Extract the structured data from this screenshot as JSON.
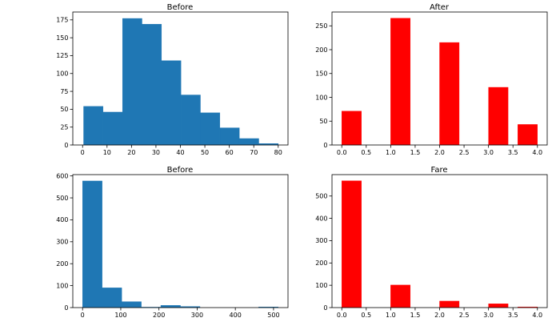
{
  "colors": {
    "blue": "#1f77b4",
    "red": "#ff0000",
    "axis": "#000000",
    "edge": "#1f77b4"
  },
  "chart_data": [
    {
      "type": "bar",
      "title": "Before",
      "xlabel": "",
      "ylabel": "",
      "xlim": [
        -4.0,
        84.0
      ],
      "ylim": [
        0,
        186
      ],
      "xticks": [
        0,
        10,
        20,
        30,
        40,
        50,
        60,
        70,
        80
      ],
      "yticks": [
        0,
        25,
        50,
        75,
        100,
        125,
        150,
        175
      ],
      "color": "#1f77b4",
      "bins": [
        {
          "x0": 0.42,
          "x1": 8.38,
          "value": 54
        },
        {
          "x0": 8.38,
          "x1": 16.34,
          "value": 46
        },
        {
          "x0": 16.34,
          "x1": 24.3,
          "value": 177
        },
        {
          "x0": 24.3,
          "x1": 32.26,
          "value": 169
        },
        {
          "x0": 32.26,
          "x1": 40.22,
          "value": 118
        },
        {
          "x0": 40.22,
          "x1": 48.18,
          "value": 70
        },
        {
          "x0": 48.18,
          "x1": 56.14,
          "value": 45
        },
        {
          "x0": 56.14,
          "x1": 64.1,
          "value": 24
        },
        {
          "x0": 64.1,
          "x1": 72.06,
          "value": 9
        },
        {
          "x0": 72.06,
          "x1": 80.02,
          "value": 2
        }
      ]
    },
    {
      "type": "bar",
      "title": "After",
      "xlabel": "",
      "ylabel": "",
      "xlim": [
        -0.2,
        4.2
      ],
      "ylim": [
        0,
        279
      ],
      "xticks": [
        0.0,
        0.5,
        1.0,
        1.5,
        2.0,
        2.5,
        3.0,
        3.5,
        4.0
      ],
      "xtick_labels": [
        "0.0",
        "0.5",
        "1.0",
        "1.5",
        "2.0",
        "2.5",
        "3.0",
        "3.5",
        "4.0"
      ],
      "yticks": [
        0,
        50,
        100,
        150,
        200,
        250
      ],
      "color": "#ff0000",
      "bins": [
        {
          "x0": 0.0,
          "x1": 0.4,
          "value": 71
        },
        {
          "x0": 1.0,
          "x1": 1.4,
          "value": 266
        },
        {
          "x0": 2.0,
          "x1": 2.4,
          "value": 215
        },
        {
          "x0": 3.0,
          "x1": 3.4,
          "value": 121
        },
        {
          "x0": 3.6,
          "x1": 4.0,
          "value": 43
        }
      ]
    },
    {
      "type": "bar",
      "title": "Before",
      "xlabel": "",
      "ylabel": "",
      "xlim": [
        -25.6,
        537.9
      ],
      "ylim": [
        0,
        606
      ],
      "xticks": [
        0,
        100,
        200,
        300,
        400,
        500
      ],
      "yticks": [
        0,
        100,
        200,
        300,
        400,
        500,
        600
      ],
      "color": "#1f77b4",
      "bins": [
        {
          "x0": 0.0,
          "x1": 51.2,
          "value": 577
        },
        {
          "x0": 51.2,
          "x1": 102.5,
          "value": 90
        },
        {
          "x0": 102.5,
          "x1": 153.7,
          "value": 27
        },
        {
          "x0": 153.7,
          "x1": 204.9,
          "value": 2
        },
        {
          "x0": 204.9,
          "x1": 256.2,
          "value": 10
        },
        {
          "x0": 256.2,
          "x1": 307.4,
          "value": 5
        },
        {
          "x0": 307.4,
          "x1": 358.7,
          "value": 0
        },
        {
          "x0": 358.7,
          "x1": 409.9,
          "value": 0
        },
        {
          "x0": 409.9,
          "x1": 461.1,
          "value": 0
        },
        {
          "x0": 461.1,
          "x1": 512.3,
          "value": 3
        }
      ]
    },
    {
      "type": "bar",
      "title": "Fare",
      "xlabel": "",
      "ylabel": "",
      "xlim": [
        -0.2,
        4.2
      ],
      "ylim": [
        0,
        596
      ],
      "xticks": [
        0.0,
        0.5,
        1.0,
        1.5,
        2.0,
        2.5,
        3.0,
        3.5,
        4.0
      ],
      "xtick_labels": [
        "0.0",
        "0.5",
        "1.0",
        "1.5",
        "2.0",
        "2.5",
        "3.0",
        "3.5",
        "4.0"
      ],
      "yticks": [
        0,
        100,
        200,
        300,
        400,
        500
      ],
      "color": "#ff0000",
      "bins": [
        {
          "x0": 0.0,
          "x1": 0.4,
          "value": 568
        },
        {
          "x0": 1.0,
          "x1": 1.4,
          "value": 101
        },
        {
          "x0": 2.0,
          "x1": 2.4,
          "value": 29
        },
        {
          "x0": 3.0,
          "x1": 3.4,
          "value": 17
        },
        {
          "x0": 3.6,
          "x1": 4.0,
          "value": 3
        }
      ]
    }
  ]
}
